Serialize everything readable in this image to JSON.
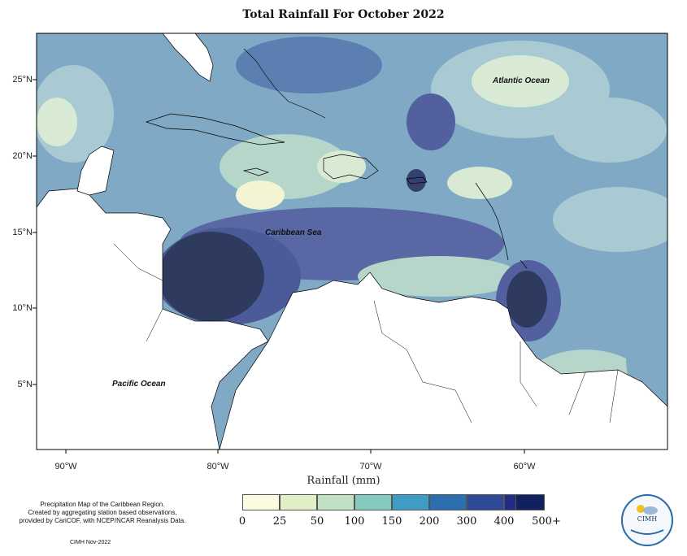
{
  "title": "Total Rainfall For October 2022",
  "map": {
    "lat_ticks": [
      "25°N",
      "20°N",
      "15°N",
      "10°N",
      "5°N"
    ],
    "lon_ticks": [
      "90°W",
      "80°W",
      "70°W",
      "60°W"
    ],
    "ocean_labels": {
      "atlantic": "Atlantic Ocean",
      "caribbean": "Caribbean Sea",
      "pacific": "Pacific Ocean"
    },
    "colors": {
      "land": "#ffffff",
      "coast": "#000000",
      "frame": "#000000"
    }
  },
  "legend": {
    "xlabel": "Rainfall (mm)",
    "bins": [
      {
        "color": "#fbfbdf"
      },
      {
        "color": "#e1efc5"
      },
      {
        "color": "#bfe1c2"
      },
      {
        "color": "#86c9bf"
      },
      {
        "color": "#3f9cc5"
      },
      {
        "color": "#2b6fb0"
      },
      {
        "color": "#2e4a98"
      },
      {
        "color": "#222c84"
      },
      {
        "color": "#11205e"
      }
    ],
    "ticks": [
      "0",
      "25",
      "50",
      "100",
      "150",
      "200",
      "300",
      "400",
      "500+"
    ]
  },
  "info": {
    "line1": "Precipitation Map of the Caribbean Region.",
    "line2": "Created by aggregating station based observations,",
    "line3": "provided by CariCOF, with NCEP/NCAR Reanalysis Data.",
    "credit": "CIMH Nov-2022",
    "logo_text": "CIMH"
  }
}
